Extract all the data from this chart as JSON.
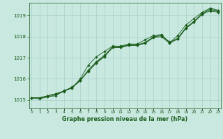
{
  "x": [
    0,
    1,
    2,
    3,
    4,
    5,
    6,
    7,
    8,
    9,
    10,
    11,
    12,
    13,
    14,
    15,
    16,
    17,
    18,
    19,
    20,
    21,
    22,
    23
  ],
  "series": [
    [
      1015.1,
      1015.1,
      1015.15,
      1015.2,
      1015.45,
      1015.55,
      1016.0,
      1016.65,
      1017.05,
      1017.3,
      1017.55,
      1017.55,
      1017.65,
      1017.65,
      1017.85,
      1018.05,
      1018.1,
      1017.7,
      1018.05,
      1018.55,
      1018.85,
      1019.15,
      1019.35,
      1019.25
    ],
    [
      1015.1,
      1015.05,
      1015.15,
      1015.25,
      1015.4,
      1015.6,
      1015.95,
      1016.35,
      1016.75,
      1017.05,
      1017.5,
      1017.5,
      1017.6,
      1017.6,
      1017.7,
      1018.0,
      1018.05,
      1017.75,
      1017.9,
      1018.4,
      1018.7,
      1019.1,
      1019.3,
      1019.2
    ],
    [
      1015.1,
      1015.1,
      1015.2,
      1015.3,
      1015.42,
      1015.62,
      1015.92,
      1016.42,
      1016.82,
      1017.12,
      1017.52,
      1017.52,
      1017.62,
      1017.62,
      1017.72,
      1017.98,
      1018.05,
      1017.72,
      1017.92,
      1018.42,
      1018.72,
      1019.08,
      1019.28,
      1019.18
    ],
    [
      1015.1,
      1015.1,
      1015.2,
      1015.28,
      1015.42,
      1015.58,
      1015.9,
      1016.38,
      1016.78,
      1017.08,
      1017.48,
      1017.48,
      1017.58,
      1017.58,
      1017.68,
      1017.95,
      1018.0,
      1017.68,
      1017.88,
      1018.38,
      1018.68,
      1019.05,
      1019.22,
      1019.15
    ]
  ],
  "line_color": "#1a5c1a",
  "bg_color": "#c8e8e0",
  "grid_color": "#a8d0c8",
  "text_color": "#1a5c1a",
  "xlabel": "Graphe pression niveau de la mer (hPa)",
  "ylim": [
    1014.6,
    1019.6
  ],
  "yticks": [
    1015,
    1016,
    1017,
    1018,
    1019
  ],
  "xticks": [
    0,
    1,
    2,
    3,
    4,
    5,
    6,
    7,
    8,
    9,
    10,
    11,
    12,
    13,
    14,
    15,
    16,
    17,
    18,
    19,
    20,
    21,
    22,
    23
  ]
}
